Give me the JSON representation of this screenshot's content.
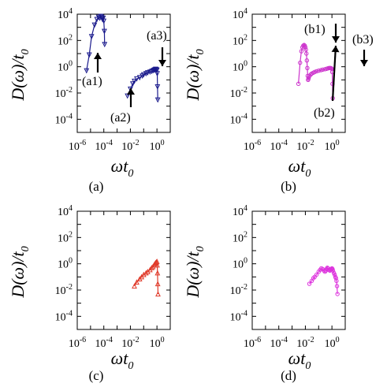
{
  "chart_data": [
    {
      "type": "line",
      "caption": "(a)",
      "xlabel": "ωt0",
      "ylabel": "D(ω)/t0",
      "xscale": "log",
      "yscale": "log",
      "xlim": [
        1e-06,
        10.0
      ],
      "ylim": [
        1e-05,
        10000.0
      ],
      "xticks": [
        "10-6",
        "10-4",
        "10-2",
        "100"
      ],
      "yticks": [
        "104",
        "102",
        "100",
        "10-2",
        "10-4"
      ],
      "color": "#1a1a8c",
      "marker": "triangle-down",
      "series": [
        {
          "x": [
            5e-06,
            8e-06,
            1.2e-05,
            2e-05,
            3e-05,
            4e-05,
            5e-05,
            6e-05,
            7e-05,
            8e-05,
            9e-05,
            0.0001,
            0.00011,
            0.000115
          ],
          "y": [
            0.5,
            8,
            200,
            1500,
            4000,
            6000,
            5000,
            7000,
            6000,
            4000,
            5000,
            3000,
            500,
            50
          ]
        },
        {
          "x": [
            0.006,
            0.01,
            0.015,
            0.02,
            0.03,
            0.05,
            0.08,
            0.1,
            0.15,
            0.2,
            0.3,
            0.4,
            0.5,
            0.6,
            0.7,
            0.8,
            0.9,
            1.0,
            1.05,
            1.1,
            1.15
          ],
          "y": [
            0.006,
            0.02,
            0.05,
            0.08,
            0.12,
            0.15,
            0.2,
            0.25,
            0.3,
            0.35,
            0.4,
            0.45,
            0.5,
            0.55,
            0.6,
            0.65,
            0.6,
            0.55,
            0.3,
            0.03,
            0.003
          ]
        }
      ],
      "annotations": [
        "(a1)",
        "(a2)",
        "(a3)"
      ]
    },
    {
      "type": "line",
      "caption": "(b)",
      "xlabel": "ωt0",
      "ylabel": "D(ω)/t0",
      "xscale": "log",
      "yscale": "log",
      "xlim": [
        1e-06,
        10.0
      ],
      "ylim": [
        1e-05,
        10000.0
      ],
      "xticks": [
        "10-6",
        "10-4",
        "10-2",
        "100"
      ],
      "yticks": [
        "104",
        "102",
        "100",
        "10-2",
        "10-4"
      ],
      "color": "#cc33cc",
      "marker": "circle",
      "series": [
        {
          "x": [
            0.003,
            0.004,
            0.005,
            0.006,
            0.007,
            0.008,
            0.009,
            0.01,
            0.011,
            0.012,
            0.013,
            0.014,
            0.015,
            0.016,
            0.017,
            0.018,
            0.02,
            0.025,
            0.03,
            0.04,
            0.05,
            0.07,
            0.1,
            0.15,
            0.2,
            0.3,
            0.4,
            0.5,
            0.6,
            0.7,
            0.8,
            0.9,
            1.0,
            1.05,
            1.1,
            1.15
          ],
          "y": [
            0.05,
            2,
            15,
            30,
            40,
            45,
            40,
            30,
            20,
            10,
            3,
            0.8,
            0.2,
            0.1,
            0.12,
            0.15,
            0.2,
            0.25,
            0.3,
            0.35,
            0.4,
            0.45,
            0.5,
            0.55,
            0.6,
            0.65,
            0.7,
            0.75,
            0.8,
            0.8,
            0.8,
            0.75,
            0.7,
            0.4,
            0.05,
            0.004
          ]
        }
      ],
      "annotations": [
        "(b1)",
        "(b2)",
        "(b3)"
      ]
    },
    {
      "type": "line",
      "caption": "(c)",
      "xlabel": "ωt0",
      "ylabel": "D(ω)/t0",
      "xscale": "log",
      "yscale": "log",
      "xlim": [
        1e-06,
        10.0
      ],
      "ylim": [
        1e-05,
        10000.0
      ],
      "xticks": [
        "10-6",
        "10-4",
        "10-2",
        "100"
      ],
      "yticks": [
        "104",
        "102",
        "100",
        "10-2",
        "10-4"
      ],
      "color": "#e03a2a",
      "marker": "triangle-up",
      "series": [
        {
          "x": [
            0.02,
            0.03,
            0.05,
            0.07,
            0.1,
            0.15,
            0.2,
            0.3,
            0.4,
            0.5,
            0.6,
            0.7,
            0.8,
            0.9,
            1.0,
            1.05,
            1.1,
            1.15,
            1.2
          ],
          "y": [
            0.02,
            0.04,
            0.07,
            0.1,
            0.15,
            0.2,
            0.25,
            0.35,
            0.5,
            0.6,
            0.8,
            1.0,
            1.2,
            1.3,
            1.5,
            0.8,
            0.2,
            0.03,
            0.005
          ]
        }
      ],
      "annotations": []
    },
    {
      "type": "line",
      "caption": "(d)",
      "xlabel": "ωt0",
      "ylabel": "D(ω)/t0",
      "xscale": "log",
      "yscale": "log",
      "xlim": [
        1e-06,
        10.0
      ],
      "ylim": [
        1e-05,
        10000.0
      ],
      "xticks": [
        "10-6",
        "10-4",
        "10-2",
        "100"
      ],
      "yticks": [
        "104",
        "102",
        "100",
        "10-2",
        "10-4"
      ],
      "color": "#dd33dd",
      "marker": "circle",
      "series": [
        {
          "x": [
            0.02,
            0.03,
            0.04,
            0.05,
            0.07,
            0.1,
            0.13,
            0.16,
            0.2,
            0.25,
            0.3,
            0.35,
            0.4,
            0.45,
            0.5,
            0.6,
            0.7,
            0.8,
            0.9,
            1.0,
            1.1,
            1.2,
            1.4,
            1.6,
            1.8,
            2.0,
            2.2,
            2.4,
            2.6
          ],
          "y": [
            0.03,
            0.05,
            0.08,
            0.1,
            0.15,
            0.25,
            0.35,
            0.45,
            0.4,
            0.3,
            0.25,
            0.3,
            0.4,
            0.5,
            0.45,
            0.35,
            0.3,
            0.35,
            0.4,
            0.45,
            0.4,
            0.3,
            0.2,
            0.15,
            0.1,
            0.08,
            0.05,
            0.02,
            0.005
          ]
        }
      ],
      "annotations": []
    }
  ]
}
